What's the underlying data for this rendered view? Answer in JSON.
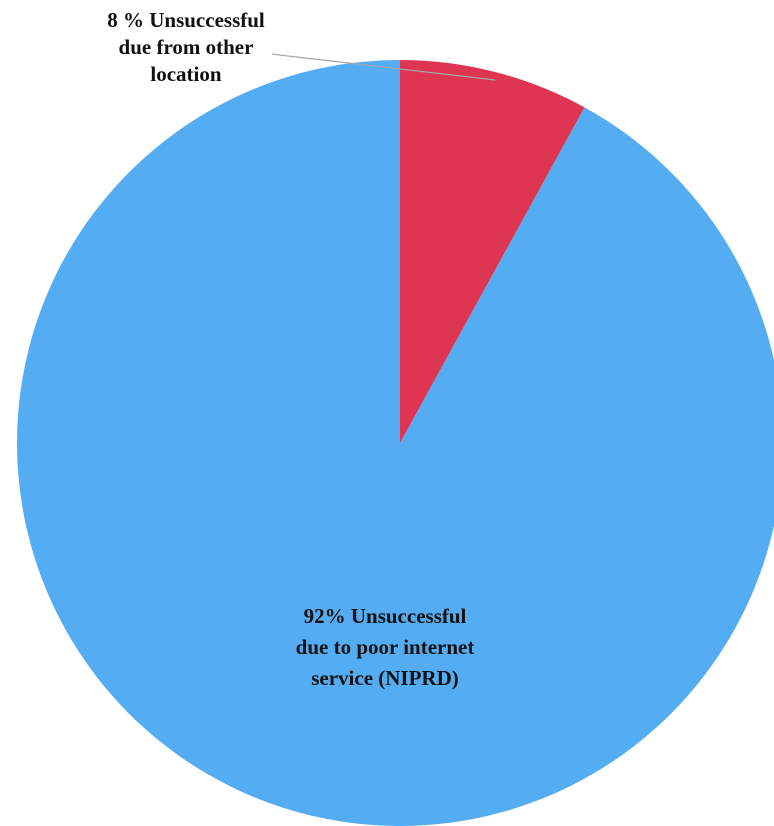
{
  "chart_data": {
    "type": "pie",
    "title": "",
    "start_angle_deg": 0,
    "direction": "counterclockwise",
    "slices": [
      {
        "value": 92,
        "color": "#54acf2",
        "label_lines": [
          "92% Unsuccessful",
          "due to poor internet",
          "service  (NIPRD)"
        ]
      },
      {
        "value": 8,
        "color": "#de3652",
        "label_lines": [
          "8 % Unsuccessful",
          "due from other",
          "location"
        ]
      }
    ]
  }
}
